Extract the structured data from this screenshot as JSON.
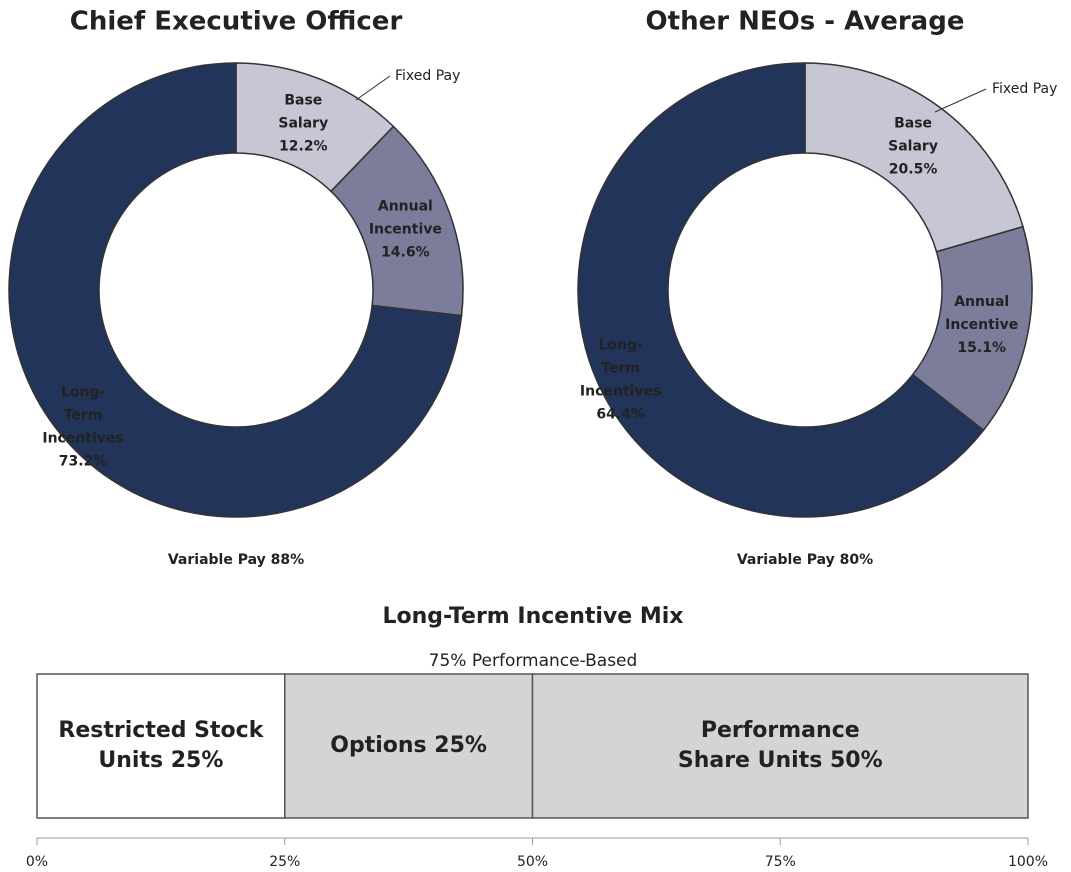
{
  "chart_data": [
    {
      "type": "donut",
      "title": "Chief Executive Officer",
      "categories": [
        "Base Salary",
        "Annual Incentive",
        "Long-Term Incentives"
      ],
      "values": [
        12.2,
        14.6,
        73.2
      ],
      "value_labels": [
        "12.2%",
        "14.6%",
        "73.2%"
      ],
      "colors": [
        "#c6c6d4",
        "#7b7d9b",
        "#223459"
      ],
      "annotations": [
        "Fixed Pay",
        "Variable Pay 88%"
      ]
    },
    {
      "type": "donut",
      "title": "Other NEOs - Average",
      "categories": [
        "Base Salary",
        "Annual Incentive",
        "Long-Term Incentives"
      ],
      "values": [
        20.5,
        15.1,
        64.4
      ],
      "value_labels": [
        "20.5%",
        "15.1%",
        "64.4%"
      ],
      "colors": [
        "#c6c6d4",
        "#7b7d9b",
        "#223459"
      ],
      "annotations": [
        "Fixed Pay",
        "Variable Pay 80%"
      ]
    },
    {
      "type": "stacked_bar",
      "title": "Long-Term Incentive Mix",
      "annotations": [
        "75% Performance-Based"
      ],
      "values": [
        25,
        25,
        50
      ],
      "value_labels": [
        "Restricted Stock Units 25%",
        "Options 25%",
        "Performance Share Units 50%"
      ],
      "colors": [
        "#ffffff",
        "#d4d4d6",
        "#d4d4d6"
      ],
      "xlim": [
        0,
        100
      ],
      "xticks": [
        {
          "value": 0,
          "label": "0%"
        },
        {
          "value": 25,
          "label": "25%"
        },
        {
          "value": 50,
          "label": "50%"
        },
        {
          "value": 75,
          "label": "75%"
        },
        {
          "value": 100,
          "label": "100%"
        }
      ]
    }
  ]
}
